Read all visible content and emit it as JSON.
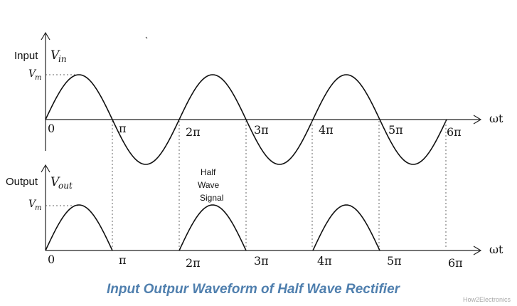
{
  "diagram": {
    "title": "Input Outpur Waveform of Half Wave Rectifier",
    "watermark": "How2Electronics",
    "time_axis_label": "ωt",
    "peak_label": "V",
    "peak_subscript": "m",
    "input": {
      "label": "Input",
      "symbol": "V",
      "symbol_subscript": "in",
      "ticks": [
        "0",
        "π",
        "2π",
        "3π",
        "4π",
        "5π",
        "6π"
      ]
    },
    "output": {
      "label": "Output",
      "symbol": "V",
      "symbol_subscript": "out",
      "ticks": [
        "0",
        "π",
        "2π",
        "3π",
        "4π",
        "5π",
        "6π"
      ],
      "annotation": [
        "Half",
        "Wave",
        "Signal"
      ]
    },
    "colors": {
      "title": "#4f7fae",
      "lines": "#111111",
      "watermark": "#a8a8a8"
    }
  }
}
